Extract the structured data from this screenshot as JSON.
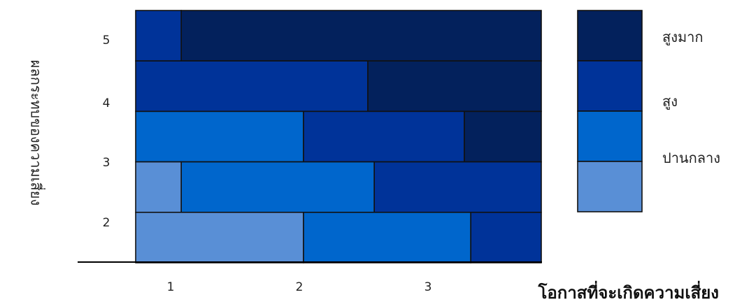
{
  "chart_data": {
    "type": "heatmap",
    "title": "",
    "xlabel": "โอกาสที่จะเกิดความเสี่ยง",
    "ylabel": "ผลกระทบของความเสี่ยง",
    "x_ticks": [
      "1",
      "2",
      "3"
    ],
    "y_ticks": [
      "5",
      "4",
      "3",
      "2"
    ],
    "levels": [
      {
        "name": "สูงมาก",
        "color": "#03215c"
      },
      {
        "name": "สูง",
        "color": "#003399"
      },
      {
        "name": "ปานกลาง",
        "color": "#0066cc"
      },
      {
        "name": "",
        "color": "#598fd6"
      }
    ],
    "rows": [
      {
        "y": 5,
        "segments": [
          {
            "from": 0.5,
            "to": 1.05,
            "level": "สูง"
          },
          {
            "from": 1.05,
            "to": 3.9,
            "level": "สูงมาก"
          }
        ]
      },
      {
        "y": 4.5,
        "segments": [
          {
            "from": 0.5,
            "to": 2.5,
            "level": "สูง"
          },
          {
            "from": 2.5,
            "to": 3.9,
            "level": "สูงมาก"
          }
        ]
      },
      {
        "y": 3.5,
        "segments": [
          {
            "from": 0.5,
            "to": 2.0,
            "level": "ปานกลาง"
          },
          {
            "from": 2.0,
            "to": 3.25,
            "level": "สูง"
          },
          {
            "from": 3.25,
            "to": 3.9,
            "level": "สูงมาก"
          }
        ]
      },
      {
        "y": 2.5,
        "segments": [
          {
            "from": 0.5,
            "to": 1.05,
            "level": ""
          },
          {
            "from": 1.05,
            "to": 2.55,
            "level": "ปานกลาง"
          },
          {
            "from": 2.55,
            "to": 3.9,
            "level": "สูง"
          }
        ]
      },
      {
        "y": 2,
        "segments": [
          {
            "from": 0.5,
            "to": 2.0,
            "level": ""
          },
          {
            "from": 2.0,
            "to": 3.3,
            "level": "ปานกลาง"
          },
          {
            "from": 3.3,
            "to": 3.9,
            "level": "สูง"
          }
        ]
      }
    ]
  }
}
